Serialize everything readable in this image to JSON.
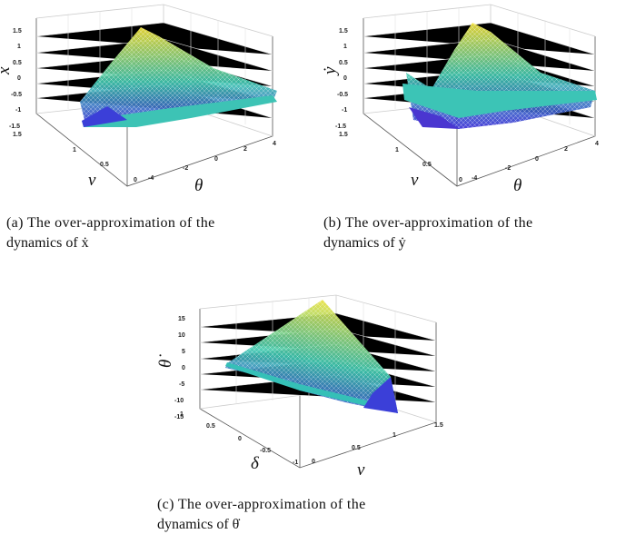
{
  "figures": [
    {
      "id": "a",
      "ylabel": "ẋ",
      "xlabel_left": "v",
      "xlabel_right": "θ",
      "z_ticks": [
        "1.5",
        "1",
        "0.5",
        "0",
        "-0.5",
        "-1",
        "-1.5"
      ],
      "left_ticks": [
        "1.5",
        "1",
        "0.5",
        "0"
      ],
      "right_ticks": [
        "-4",
        "-2",
        "0",
        "2",
        "4"
      ],
      "caption_line1": "(a) The over-approximation of the",
      "caption_line2": "dynamics of ẋ"
    },
    {
      "id": "b",
      "ylabel": "ẏ",
      "xlabel_left": "v",
      "xlabel_right": "θ",
      "z_ticks": [
        "1.5",
        "1",
        "0.5",
        "0",
        "-0.5",
        "-1",
        "-1.5"
      ],
      "left_ticks": [
        "1.5",
        "1",
        "0.5",
        "0"
      ],
      "right_ticks": [
        "-4",
        "-2",
        "0",
        "2",
        "4"
      ],
      "caption_line1": "(b) The over-approximation of the",
      "caption_line2": "dynamics of ẏ"
    },
    {
      "id": "c",
      "ylabel": "θ̇",
      "xlabel_left": "δ",
      "xlabel_right": "v",
      "z_ticks": [
        "15",
        "10",
        "5",
        "0",
        "-5",
        "-10",
        "-15"
      ],
      "left_ticks": [
        "1",
        "0.5",
        "0",
        "-0.5",
        "-1"
      ],
      "right_ticks": [
        "0",
        "0.5",
        "1",
        "1.5"
      ],
      "caption_line1": "(c) The over-approximation of the",
      "caption_line2": "dynamics of θ̇"
    }
  ],
  "colors": {
    "surface_high": "#f5e33a",
    "surface_mid": "#3fc7b0",
    "surface_low": "#3b2fd6",
    "grid": "#dddddd",
    "box": "#555555"
  }
}
